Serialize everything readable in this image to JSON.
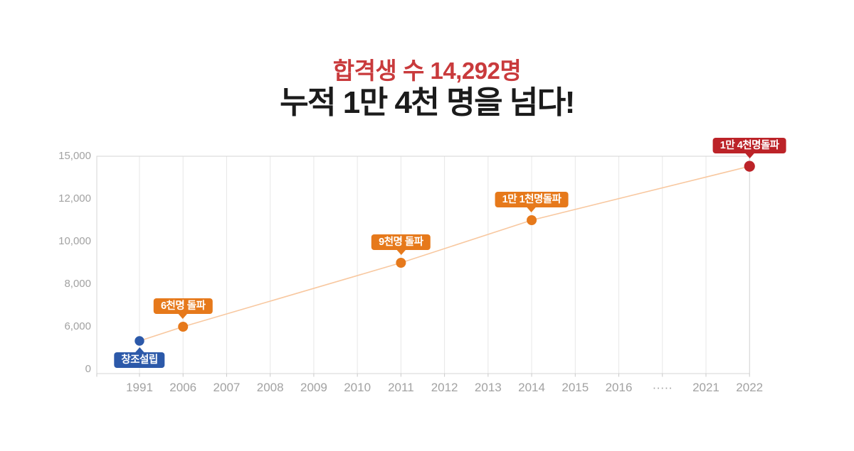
{
  "header": {
    "title_red": "합격생 수 14,292명",
    "title_black": "누적 1만 4천 명을 넘다!"
  },
  "chart_data": {
    "type": "line",
    "title_lines": [
      "합격생 수 14,292명",
      "누적 1만 4천 명을 넘다!"
    ],
    "x_categories": [
      "1991",
      "2006",
      "2007",
      "2008",
      "2009",
      "2010",
      "2011",
      "2012",
      "2013",
      "2014",
      "2015",
      "2016",
      "·····",
      "2021",
      "2022"
    ],
    "y_ticks": [
      0,
      6000,
      8000,
      10000,
      12000,
      15000
    ],
    "y_tick_labels": [
      "0",
      "6,000",
      "8,000",
      "10,000",
      "12,000",
      "15,000"
    ],
    "y_axis_note": "tick values are equally spaced (non-linear axis)",
    "grid": "vertical-only",
    "legend": "none",
    "line_color": "#f8c8a0",
    "series": [
      {
        "name": "cumulative-passers",
        "points": [
          {
            "x": "1991",
            "value": 4000,
            "label": "창조설립",
            "color": "#2c59a9",
            "label_position": "below"
          },
          {
            "x": "2006",
            "value": 6000,
            "label": "6천명 돌파",
            "color": "#e6791b",
            "label_position": "above"
          },
          {
            "x": "2011",
            "value": 9000,
            "label": "9천명 돌파",
            "color": "#e6791b",
            "label_position": "above"
          },
          {
            "x": "2014",
            "value": 11000,
            "label": "1만 1천명돌파",
            "color": "#e6791b",
            "label_position": "above"
          },
          {
            "x": "2022",
            "value": 14292,
            "label": "1만 4천명돌파",
            "color": "#bc2328",
            "label_position": "above"
          }
        ]
      }
    ]
  },
  "colors": {
    "title_red": "#c93a3c",
    "title_black": "#1b1b1b",
    "blue": "#2c59a9",
    "orange": "#e6791b",
    "dark_red": "#bc2328",
    "trend_line": "#f8c8a0",
    "gridline": "#e7e7e7",
    "plot_border": "#d5d5d5",
    "tick_mark": "#c9c9c9",
    "axis_text": "#a2a2a2"
  }
}
